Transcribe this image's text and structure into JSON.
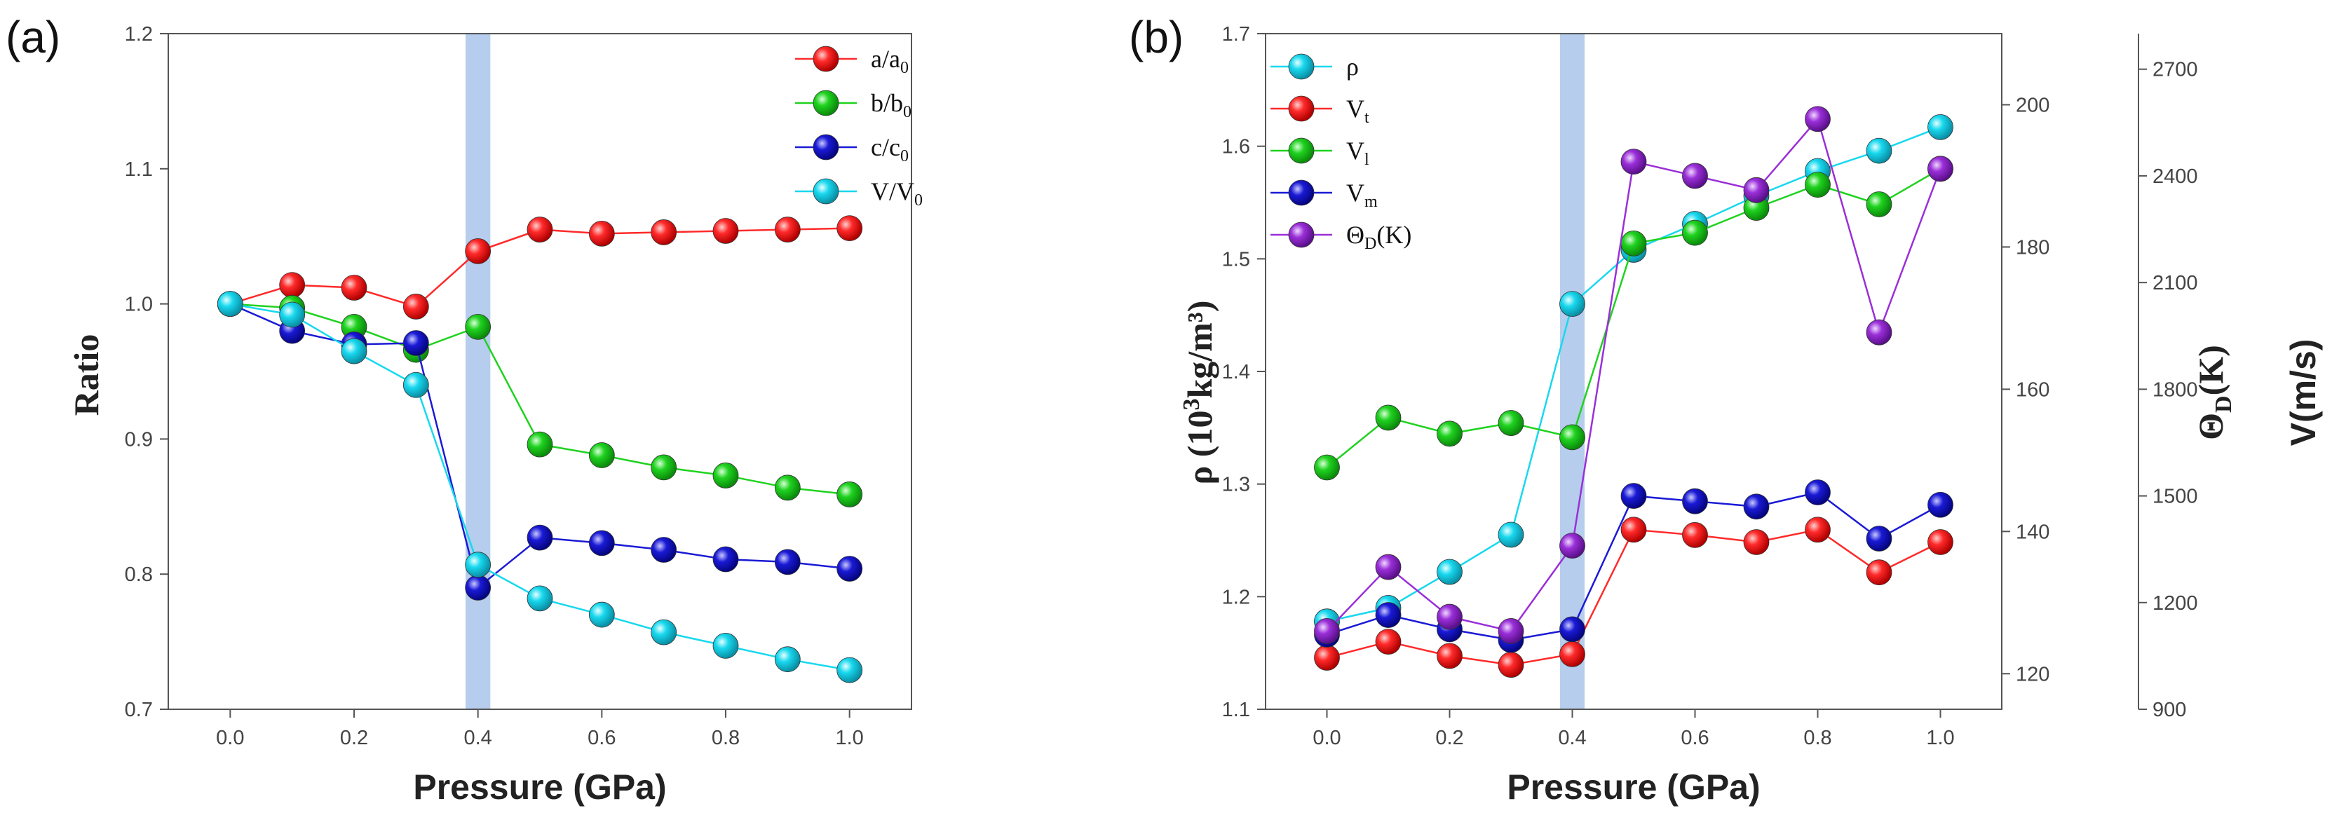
{
  "chart_data": [
    {
      "panel_label": "(a)",
      "type": "line",
      "xlabel": "Pressure (GPa)",
      "ylabel": "Ratio",
      "xlim": [
        -0.1,
        1.1
      ],
      "ylim": [
        0.7,
        1.2
      ],
      "xticks": [
        "0.0",
        "0.2",
        "0.4",
        "0.6",
        "0.8",
        "1.0"
      ],
      "yticks": [
        "0.7",
        "0.8",
        "0.9",
        "1.0",
        "1.1",
        "1.2"
      ],
      "highlight_band": [
        0.38,
        0.42
      ],
      "legend_position": "top-right",
      "x": [
        0.0,
        0.1,
        0.2,
        0.3,
        0.4,
        0.5,
        0.6,
        0.7,
        0.8,
        0.9,
        1.0
      ],
      "series": [
        {
          "name": "a/a0",
          "label_main": "a/a",
          "label_sub": "0",
          "color": "#ff2a2a",
          "values": [
            1.0,
            1.014,
            1.012,
            0.998,
            1.039,
            1.055,
            1.052,
            1.053,
            1.054,
            1.055,
            1.056
          ]
        },
        {
          "name": "b/b0",
          "label_main": "b/b",
          "label_sub": "0",
          "color": "#1fd21f",
          "values": [
            1.0,
            0.997,
            0.983,
            0.966,
            0.983,
            0.896,
            0.888,
            0.879,
            0.873,
            0.864,
            0.859
          ]
        },
        {
          "name": "c/c0",
          "label_main": "c/c",
          "label_sub": "0",
          "color": "#1a1ad6",
          "values": [
            1.0,
            0.98,
            0.97,
            0.971,
            0.79,
            0.827,
            0.823,
            0.818,
            0.811,
            0.809,
            0.804
          ]
        },
        {
          "name": "V/V0",
          "label_main": "V/V",
          "label_sub": "0",
          "color": "#18d8ee",
          "values": [
            1.0,
            0.992,
            0.965,
            0.94,
            0.807,
            0.782,
            0.77,
            0.757,
            0.747,
            0.737,
            0.729
          ]
        }
      ]
    },
    {
      "panel_label": "(b)",
      "type": "line",
      "xlabel": "Pressure (GPa)",
      "ylabel": "ρ (10³kg/m³)",
      "ylabel_right1": "ΘD(K)",
      "ylabel_right2": "V(m/s)",
      "xlim": [
        -0.1,
        1.1
      ],
      "ylim": [
        1.1,
        1.7
      ],
      "y2lim": [
        115,
        210
      ],
      "y3lim": [
        900,
        2800
      ],
      "xticks": [
        "0.0",
        "0.2",
        "0.4",
        "0.6",
        "0.8",
        "1.0"
      ],
      "yticks": [
        "1.1",
        "1.2",
        "1.3",
        "1.4",
        "1.5",
        "1.6",
        "1.7"
      ],
      "y2ticks": [
        "120",
        "140",
        "160",
        "180",
        "200"
      ],
      "y3ticks": [
        "900",
        "1200",
        "1500",
        "1800",
        "2100",
        "2400",
        "2700"
      ],
      "highlight_band": [
        0.38,
        0.42
      ],
      "legend_position": "top-left",
      "x": [
        0.0,
        0.1,
        0.2,
        0.3,
        0.4,
        0.5,
        0.6,
        0.7,
        0.8,
        0.9,
        1.0
      ],
      "series": [
        {
          "name": "ρ",
          "label_main": "ρ",
          "label_sub": "",
          "axis": "left",
          "color": "#18d8ee",
          "values": [
            1.178,
            1.19,
            1.222,
            1.255,
            1.46,
            1.508,
            1.531,
            1.556,
            1.578,
            1.596,
            1.617
          ]
        },
        {
          "name": "Vt",
          "label_main": "V",
          "label_sub": "t",
          "axis": "right2",
          "color": "#ff2a2a",
          "values": [
            1045,
            1090,
            1050,
            1025,
            1055,
            1405,
            1390,
            1370,
            1405,
            1285,
            1370
          ]
        },
        {
          "name": "Vl",
          "label_main": "V",
          "label_sub": "l",
          "axis": "right2",
          "color": "#1fd21f",
          "values": [
            1580,
            1720,
            1675,
            1705,
            1665,
            2210,
            2240,
            2310,
            2375,
            2320,
            2420
          ]
        },
        {
          "name": "Vm",
          "label_main": "V",
          "label_sub": "m",
          "axis": "right2",
          "color": "#1a1ad6",
          "values": [
            1110,
            1165,
            1125,
            1095,
            1125,
            1500,
            1485,
            1470,
            1510,
            1380,
            1475
          ]
        },
        {
          "name": "ΘD(K)",
          "label_main": "Θ",
          "label_sub": "D",
          "label_tail": "(K)",
          "axis": "right1",
          "color": "#9a2fd8",
          "values": [
            126,
            135,
            128,
            126,
            138,
            192,
            190,
            188,
            198,
            168,
            191
          ]
        }
      ]
    }
  ]
}
